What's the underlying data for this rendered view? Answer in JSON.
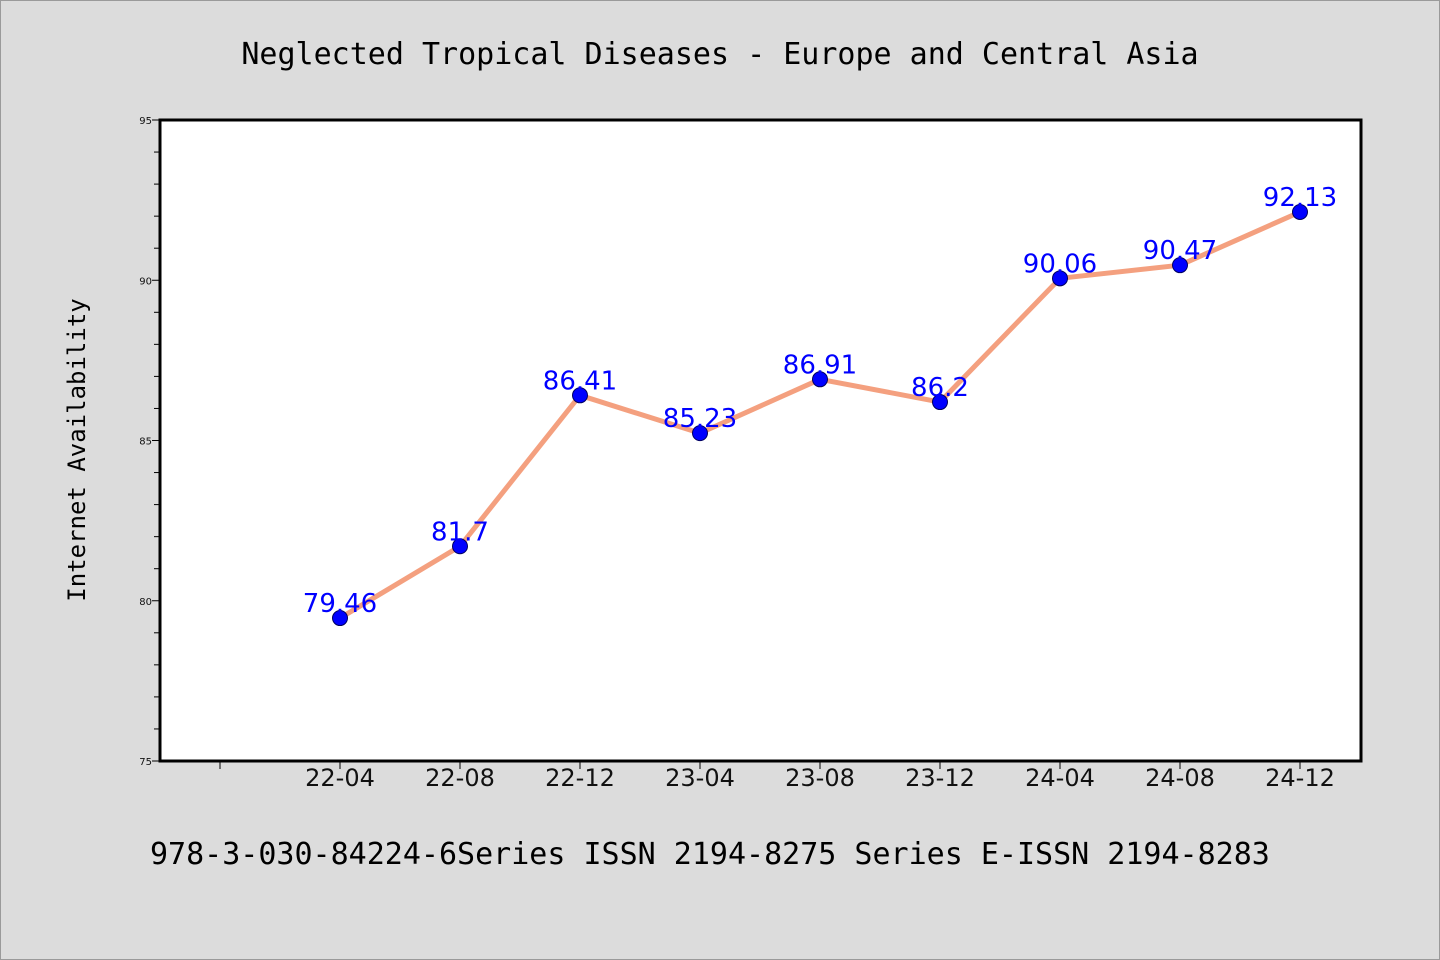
{
  "chart_data": {
    "type": "line",
    "title": "Neglected Tropical Diseases - Europe and Central Asia",
    "xlabel": "",
    "ylabel": "Internet Availability",
    "categories": [
      "22-04",
      "22-08",
      "22-12",
      "23-04",
      "23-08",
      "23-12",
      "24-04",
      "24-08",
      "24-12"
    ],
    "series": [
      {
        "values": [
          79.46,
          81.7,
          86.41,
          85.23,
          86.91,
          86.2,
          90.06,
          90.47,
          92.13
        ],
        "labels": [
          "79.46",
          "81.7",
          "86.41",
          "85.23",
          "86.91",
          "86.2",
          "90.06",
          "90.47",
          "92.13"
        ]
      }
    ],
    "ylim": [
      75,
      95
    ],
    "yticks": [
      75,
      80,
      85,
      90,
      95
    ],
    "grid": false,
    "colors": {
      "line": "#f4a07f",
      "marker": "#0000ff",
      "data_label": "#0000ff",
      "background": "#dcdcdc",
      "plot_background": "#ffffff"
    }
  },
  "footer": {
    "text": "978-3-030-84224-6Series ISSN 2194-8275 Series E-ISSN 2194-8283"
  }
}
